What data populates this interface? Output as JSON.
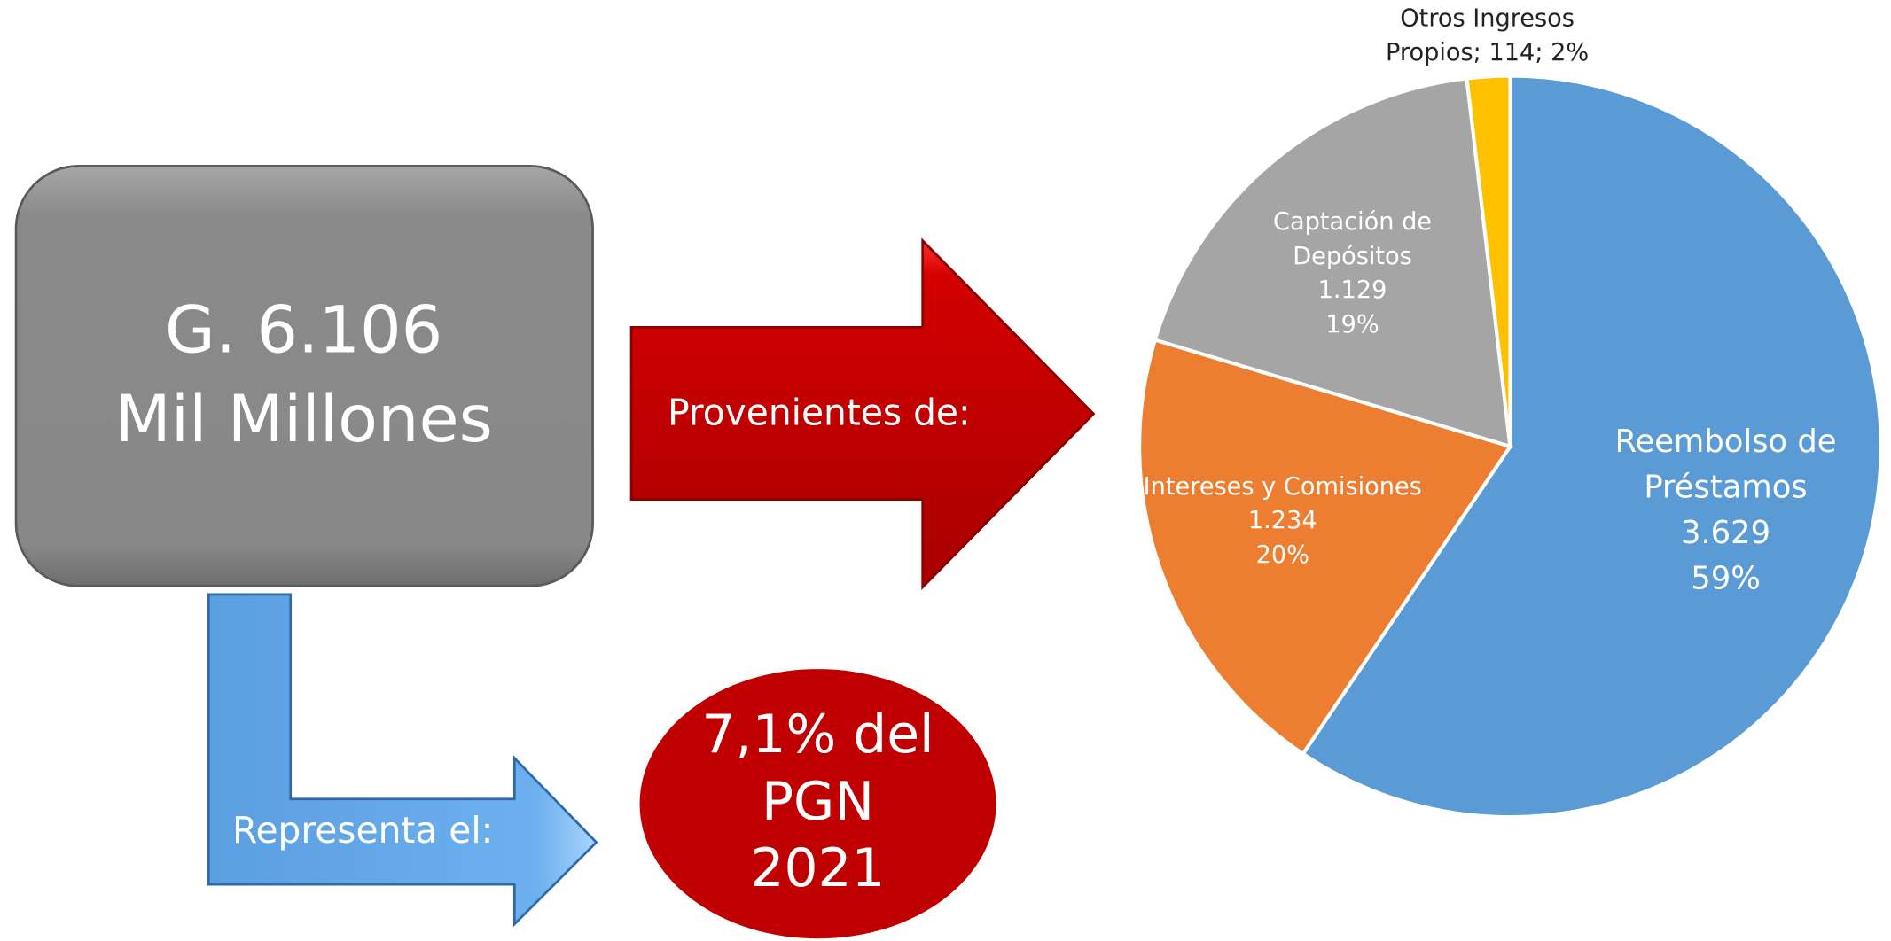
{
  "diagram": {
    "total_box": [
      "G. 6.106",
      "Mil Millones"
    ],
    "source_arrow": "Provenientes de:",
    "share_arrow": "Representa el:",
    "share_ellipse": [
      "7,1% del",
      "PGN",
      "2021"
    ]
  },
  "chart_data": {
    "type": "pie",
    "categories": [
      "Reembolso de Préstamos",
      "Intereses y Comisiones",
      "Captación de Depósitos",
      "Otros Ingresos Propios"
    ],
    "values": [
      3629,
      1234,
      1129,
      114
    ],
    "value_labels": [
      "3.629",
      "1.234",
      "1.129",
      "114"
    ],
    "percents": [
      59,
      20,
      19,
      2
    ],
    "percent_labels": [
      "59%",
      "20%",
      "19%",
      "2%"
    ],
    "colors": [
      "#5b9bd5",
      "#ed7d31",
      "#a5a5a5",
      "#ffc000"
    ],
    "label_separator": "; "
  }
}
